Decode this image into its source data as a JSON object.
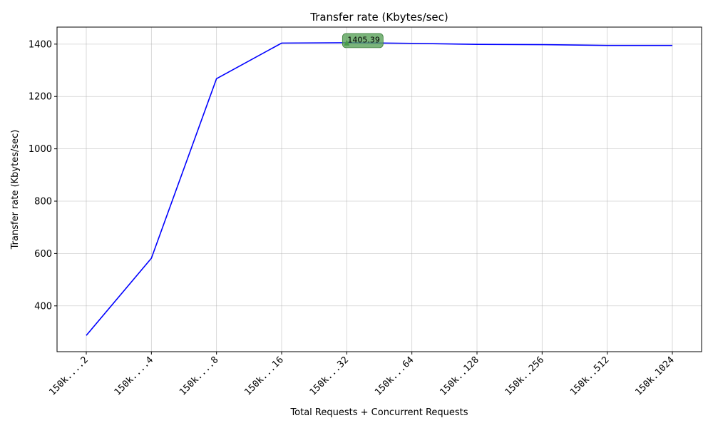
{
  "chart_data": {
    "type": "line",
    "title": "Transfer rate (Kbytes/sec)",
    "xlabel": "Total Requests + Concurrent Requests",
    "ylabel": "Transfer rate (Kbytes/sec)",
    "categories": [
      "150k....2",
      "150k....4",
      "150k....8",
      "150k...16",
      "150k...32",
      "150k...64",
      "150k..128",
      "150k..256",
      "150k..512",
      "150k.1024"
    ],
    "series": [
      {
        "values": [
          287,
          582,
          1268,
          1404,
          1405.39,
          1403,
          1399,
          1398,
          1395,
          1395
        ]
      }
    ],
    "ylim": [
      225,
      1465
    ],
    "yticks": [
      400,
      600,
      800,
      1000,
      1200,
      1400
    ],
    "grid": true,
    "annotations": [
      {
        "text": "1405.39",
        "category": "150k...32",
        "value": 1405.39
      }
    ],
    "colors": {
      "line": "#0000ff",
      "marker": "#008000",
      "annotation_bg": "#5aa35a"
    }
  }
}
